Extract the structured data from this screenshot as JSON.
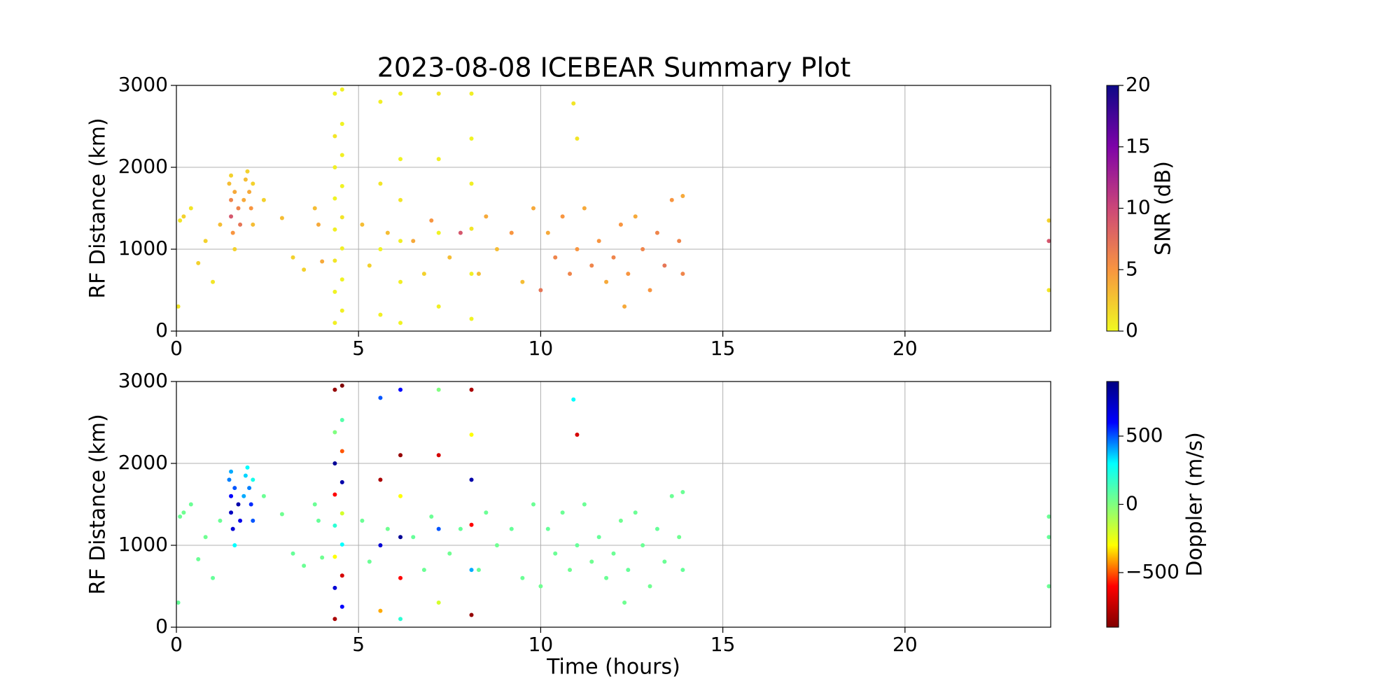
{
  "chart_data": [
    {
      "type": "scatter",
      "title": "2023-08-08 ICEBEAR Summary Plot",
      "ylabel": "RF Distance (km)",
      "xlim": [
        0,
        24
      ],
      "ylim": [
        0,
        3000
      ],
      "xticks": [
        0,
        5,
        10,
        15,
        20
      ],
      "yticks": [
        0,
        1000,
        2000,
        3000
      ],
      "grid": true,
      "colorbar": {
        "label": "SNR (dB)",
        "lim": [
          0,
          20
        ],
        "ticks": [
          0,
          5,
          10,
          15,
          20
        ],
        "colors": [
          "#f0f921",
          "#f89540",
          "#cc4778",
          "#7e03a8",
          "#0d0887"
        ]
      },
      "x": [
        1.45,
        1.5,
        1.5,
        1.55,
        1.6,
        1.6,
        1.5,
        1.7,
        1.75,
        1.9,
        1.95,
        2.0,
        2.05,
        2.1,
        2.1,
        1.85,
        4.35,
        4.35,
        4.35,
        4.35,
        4.35,
        4.35,
        4.35,
        4.35,
        4.55,
        4.55,
        4.55,
        4.55,
        4.55,
        4.55,
        4.55,
        4.55,
        5.6,
        5.6,
        5.6,
        5.6,
        6.15,
        6.15,
        6.15,
        6.15,
        6.15,
        6.15,
        7.2,
        7.2,
        7.2,
        7.2,
        8.1,
        8.1,
        8.1,
        8.1,
        8.1,
        8.1,
        0.1,
        0.2,
        0.05,
        0.4,
        0.6,
        0.8,
        1.0,
        1.2,
        2.4,
        2.9,
        3.2,
        3.5,
        3.8,
        4.0,
        3.9,
        5.1,
        5.3,
        5.8,
        6.5,
        6.8,
        7.0,
        7.5,
        7.8,
        8.3,
        8.5,
        8.8,
        9.2,
        9.5,
        9.8,
        10.0,
        10.2,
        10.4,
        10.6,
        10.8,
        11.0,
        11.0,
        11.2,
        11.4,
        11.6,
        11.8,
        12.0,
        12.2,
        12.4,
        12.6,
        12.8,
        13.0,
        13.2,
        13.4,
        13.6,
        13.8,
        13.9,
        13.9,
        10.9,
        12.3,
        23.95,
        23.95,
        23.95
      ],
      "y": [
        1800,
        1600,
        1400,
        1200,
        1000,
        1700,
        1900,
        1500,
        1300,
        1850,
        1950,
        1700,
        1500,
        1300,
        1800,
        1600,
        100,
        480,
        860,
        1240,
        1620,
        2000,
        2380,
        2900,
        250,
        630,
        1010,
        1390,
        1770,
        2150,
        2530,
        2950,
        200,
        1000,
        1800,
        2800,
        100,
        600,
        1100,
        1600,
        2100,
        2900,
        300,
        1200,
        2100,
        2900,
        150,
        700,
        1250,
        1800,
        2350,
        2900,
        1350,
        1400,
        300,
        1500,
        830,
        1100,
        600,
        1300,
        1600,
        1380,
        900,
        750,
        1500,
        850,
        1300,
        1300,
        800,
        1200,
        1100,
        700,
        1350,
        900,
        1200,
        700,
        1400,
        1000,
        1200,
        600,
        1500,
        500,
        1200,
        900,
        1400,
        700,
        1000,
        2350,
        1500,
        800,
        1100,
        600,
        900,
        1300,
        700,
        1400,
        1000,
        500,
        1200,
        800,
        1600,
        1100,
        700,
        1650,
        2780,
        300,
        1100,
        1350,
        500
      ],
      "c": [
        3,
        6,
        9,
        5,
        2,
        4,
        2,
        6,
        7,
        3,
        2,
        4,
        5,
        3,
        2,
        4,
        0.5,
        0.3,
        1,
        0.5,
        0.3,
        0.5,
        1,
        0.3,
        0.5,
        0.3,
        0.5,
        1,
        0.3,
        0.5,
        0.3,
        0.5,
        0.5,
        0.3,
        1,
        0.5,
        0.3,
        0.5,
        0.5,
        1,
        0.3,
        0.5,
        0.5,
        0.3,
        0.5,
        1,
        0.3,
        0.5,
        1,
        0.5,
        0.3,
        0.5,
        1,
        2,
        1,
        1,
        2,
        2,
        1,
        3,
        2,
        3,
        2,
        2,
        3,
        4,
        4,
        3,
        2,
        3,
        4,
        2,
        5,
        3,
        9,
        3,
        4,
        3,
        5,
        3,
        4,
        7,
        4,
        6,
        5,
        6,
        5,
        1,
        4,
        6,
        5,
        4,
        6,
        5,
        5,
        4,
        6,
        5,
        6,
        7,
        5,
        6,
        6,
        4,
        1,
        4,
        9,
        2,
        1
      ]
    },
    {
      "type": "scatter",
      "ylabel": "RF Distance (km)",
      "xlabel": "Time (hours)",
      "xlim": [
        0,
        24
      ],
      "ylim": [
        0,
        3000
      ],
      "xticks": [
        0,
        5,
        10,
        15,
        20
      ],
      "yticks": [
        0,
        1000,
        2000,
        3000
      ],
      "grid": true,
      "colorbar": {
        "label": "Doppler (m/s)",
        "lim": [
          -900,
          900
        ],
        "ticks": [
          {
            "value": -500,
            "label": "−500"
          },
          0,
          500
        ],
        "colors": [
          "#800000",
          "#ff0000",
          "#ffff00",
          "#80ff80",
          "#00ffff",
          "#0000ff",
          "#000080"
        ]
      },
      "x": [
        1.45,
        1.5,
        1.5,
        1.55,
        1.6,
        1.6,
        1.5,
        1.7,
        1.75,
        1.9,
        1.95,
        2.0,
        2.05,
        2.1,
        2.1,
        1.85,
        4.35,
        4.35,
        4.35,
        4.35,
        4.35,
        4.35,
        4.35,
        4.35,
        4.55,
        4.55,
        4.55,
        4.55,
        4.55,
        4.55,
        4.55,
        4.55,
        5.6,
        5.6,
        5.6,
        5.6,
        6.15,
        6.15,
        6.15,
        6.15,
        6.15,
        6.15,
        7.2,
        7.2,
        7.2,
        7.2,
        8.1,
        8.1,
        8.1,
        8.1,
        8.1,
        8.1,
        0.1,
        0.2,
        0.05,
        0.4,
        0.6,
        0.8,
        1.0,
        1.2,
        2.4,
        2.9,
        3.2,
        3.5,
        3.8,
        4.0,
        3.9,
        5.1,
        5.3,
        5.8,
        6.5,
        6.8,
        7.0,
        7.5,
        7.8,
        8.3,
        8.5,
        8.8,
        9.2,
        9.5,
        9.8,
        10.0,
        10.2,
        10.4,
        10.6,
        10.8,
        11.0,
        11.0,
        11.2,
        11.4,
        11.6,
        11.8,
        12.0,
        12.2,
        12.4,
        12.6,
        12.8,
        13.0,
        13.2,
        13.4,
        13.6,
        13.8,
        13.9,
        13.9,
        10.9,
        12.3,
        23.95,
        23.95,
        23.95
      ],
      "y": [
        1800,
        1600,
        1400,
        1200,
        1000,
        1700,
        1900,
        1500,
        1300,
        1850,
        1950,
        1700,
        1500,
        1300,
        1800,
        1600,
        100,
        480,
        860,
        1240,
        1620,
        2000,
        2380,
        2900,
        250,
        630,
        1010,
        1390,
        1770,
        2150,
        2530,
        2950,
        200,
        1000,
        1800,
        2800,
        100,
        600,
        1100,
        1600,
        2100,
        2900,
        300,
        1200,
        2100,
        2900,
        150,
        700,
        1250,
        1800,
        2350,
        2900,
        1350,
        1400,
        300,
        1500,
        830,
        1100,
        600,
        1300,
        1600,
        1380,
        900,
        750,
        1500,
        850,
        1300,
        1300,
        800,
        1200,
        1100,
        700,
        1350,
        900,
        1200,
        700,
        1400,
        1000,
        1200,
        600,
        1500,
        500,
        1200,
        900,
        1400,
        700,
        1000,
        2350,
        1500,
        800,
        1100,
        600,
        900,
        1300,
        700,
        1400,
        1000,
        500,
        1200,
        800,
        1600,
        1100,
        700,
        1650,
        2780,
        300,
        1100,
        1350,
        500
      ],
      "c": [
        450,
        600,
        750,
        700,
        300,
        500,
        400,
        800,
        650,
        350,
        300,
        450,
        550,
        500,
        250,
        400,
        -800,
        700,
        -300,
        200,
        -600,
        850,
        0,
        -850,
        600,
        -700,
        300,
        -200,
        800,
        -500,
        100,
        -900,
        -400,
        700,
        -800,
        500,
        200,
        -600,
        850,
        -300,
        -850,
        600,
        -200,
        500,
        -700,
        0,
        -850,
        400,
        -600,
        800,
        -300,
        -800,
        50,
        40,
        60,
        50,
        50,
        40,
        60,
        50,
        50,
        40,
        60,
        50,
        50,
        40,
        60,
        50,
        50,
        40,
        60,
        50,
        50,
        40,
        60,
        50,
        50,
        40,
        60,
        50,
        50,
        40,
        60,
        50,
        50,
        40,
        60,
        -700,
        50,
        40,
        60,
        50,
        50,
        40,
        60,
        50,
        50,
        40,
        60,
        50,
        50,
        40,
        60,
        50,
        300,
        40,
        60,
        50,
        50
      ]
    }
  ]
}
